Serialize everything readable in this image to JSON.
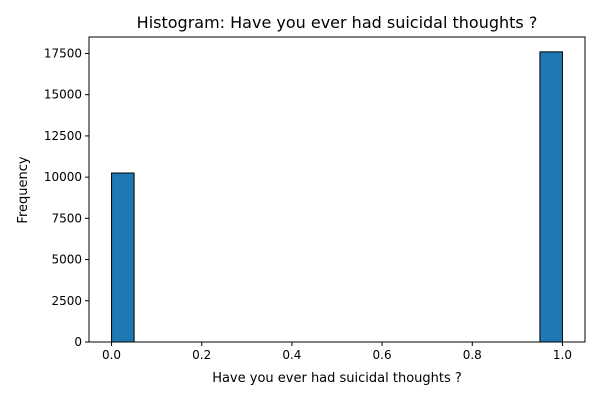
{
  "chart_data": {
    "type": "bar",
    "title": "Histogram: Have you ever had suicidal thoughts ?",
    "xlabel": "Have you ever had suicidal thoughts ?",
    "ylabel": "Frequency",
    "bin_width": 0.05,
    "bins": [
      {
        "x_start": 0.0,
        "x_end": 0.05,
        "value": 10250
      },
      {
        "x_start": 0.95,
        "x_end": 1.0,
        "value": 17600
      }
    ],
    "xlim": [
      -0.05,
      1.05
    ],
    "ylim": [
      0,
      18500
    ],
    "x_ticks": [
      0.0,
      0.2,
      0.4,
      0.6,
      0.8,
      1.0
    ],
    "x_tick_labels": [
      "0.0",
      "0.2",
      "0.4",
      "0.6",
      "0.8",
      "1.0"
    ],
    "y_ticks": [
      0,
      2500,
      5000,
      7500,
      10000,
      12500,
      15000,
      17500
    ],
    "y_tick_labels": [
      "0",
      "2500",
      "5000",
      "7500",
      "10000",
      "12500",
      "15000",
      "17500"
    ],
    "grid": false,
    "colors": {
      "bar_fill": "#1f77b4",
      "bar_edge": "#000000"
    }
  }
}
